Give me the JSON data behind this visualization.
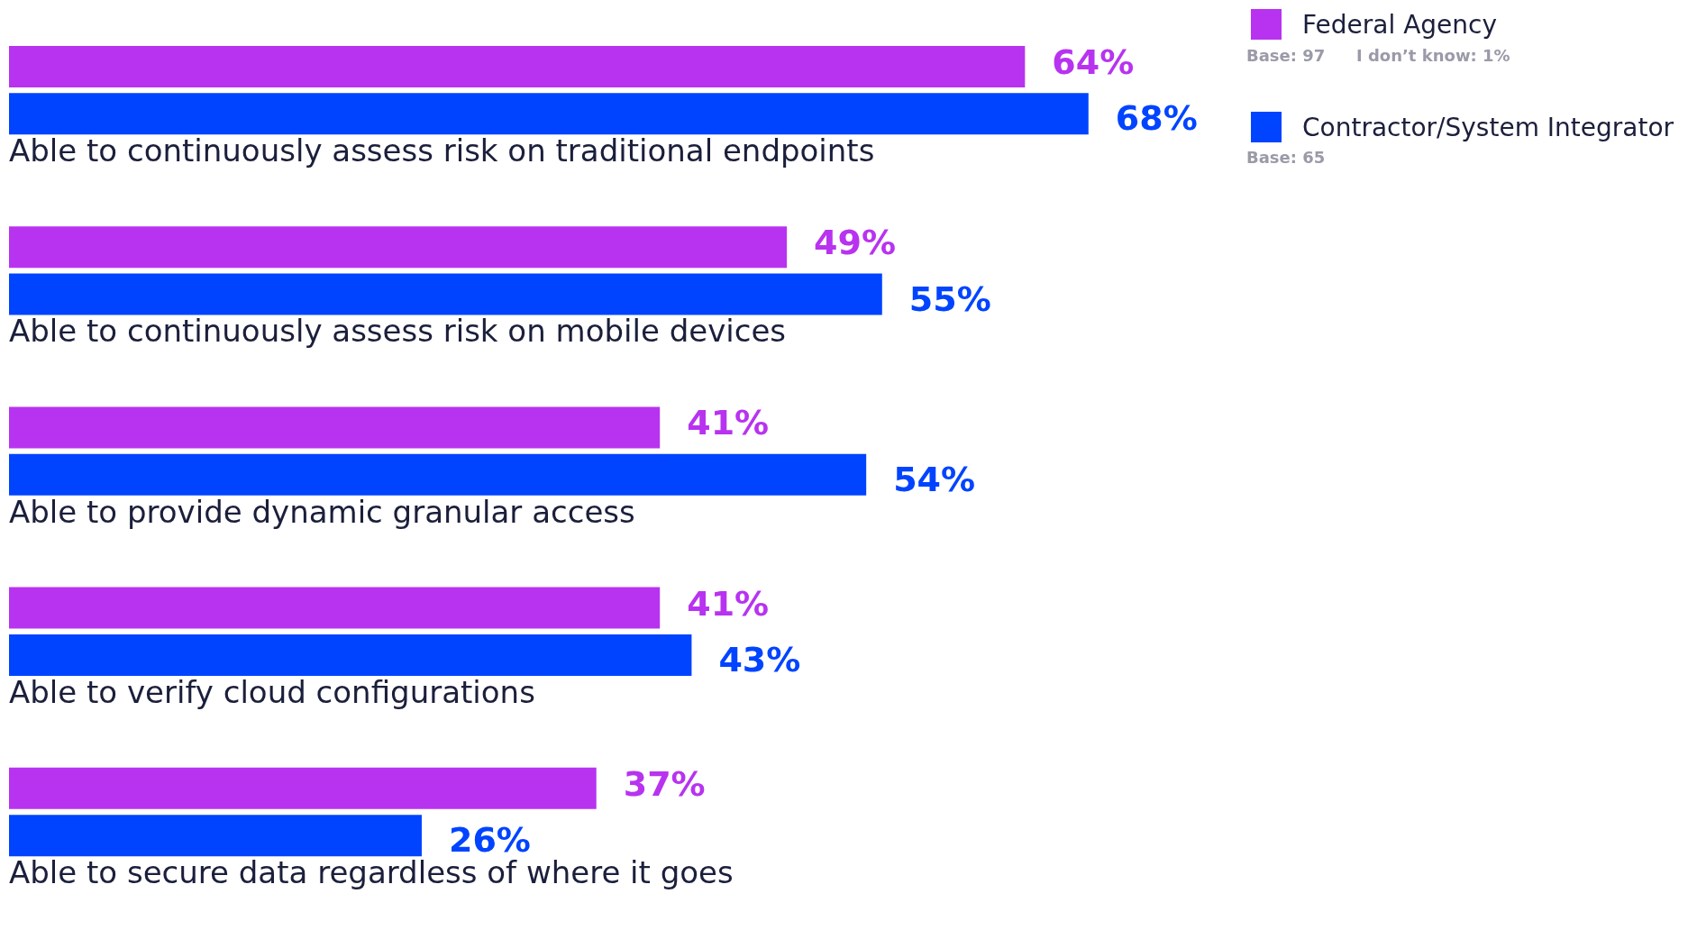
{
  "chart_data": {
    "type": "bar",
    "orientation": "horizontal",
    "categories": [
      "Able to continuously assess risk on traditional endpoints",
      "Able to continuously assess risk on mobile devices",
      "Able to provide dynamic granular access",
      "Able to verify cloud configurations",
      "Able to secure data regardless of where it goes"
    ],
    "series": [
      {
        "name": "Federal Agency",
        "color": "#b833f0",
        "values": [
          64,
          49,
          41,
          41,
          37
        ],
        "value_labels": [
          "64%",
          "49%",
          "41%",
          "41%",
          "37%"
        ]
      },
      {
        "name": "Contractor/System Integrator",
        "color": "#0044ff",
        "values": [
          68,
          55,
          54,
          43,
          26
        ],
        "value_labels": [
          "68%",
          "55%",
          "54%",
          "43%",
          "26%"
        ]
      }
    ],
    "legend": "top right",
    "annotations": [
      "Base: 97",
      "I don’t know: 1%",
      "Base: 65"
    ]
  }
}
